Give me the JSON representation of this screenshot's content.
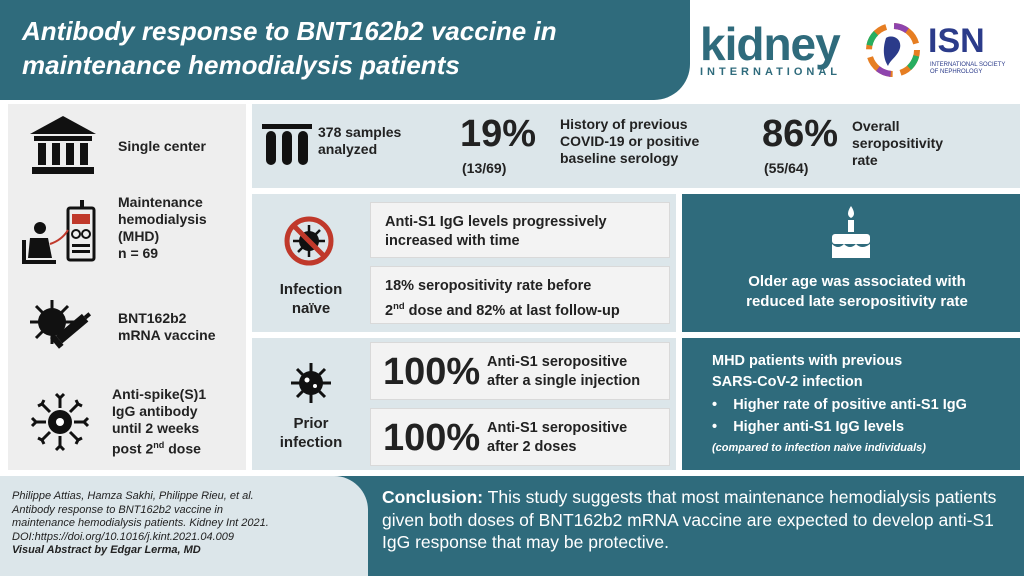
{
  "header": {
    "title_line1": "Antibody response to BNT162b2 vaccine in",
    "title_line2": "maintenance hemodialysis patients",
    "journal_logo_word": "kidney",
    "journal_logo_sub": "INTERNATIONAL",
    "society_logo_word": "ISN",
    "society_logo_sub_line1": "INTERNATIONAL SOCIETY",
    "society_logo_sub_line2": "OF NEPHROLOGY"
  },
  "left_column": {
    "items": [
      {
        "icon": "building-icon",
        "lines": [
          "Single center"
        ]
      },
      {
        "icon": "dialysis-patient-icon",
        "lines": [
          "Maintenance",
          "hemodialysis",
          "(MHD)",
          "n = 69"
        ]
      },
      {
        "icon": "syringe-virus-icon",
        "lines": [
          "BNT162b2",
          "mRNA vaccine"
        ]
      },
      {
        "icon": "antibody-virus-icon",
        "lines": [
          "Anti-spike(S)1",
          "IgG antibody",
          "until 2 weeks",
          "post 2",
          "nd",
          " dose"
        ]
      }
    ]
  },
  "stats": {
    "samples_line1": "378 samples",
    "samples_line2": "analyzed",
    "covid_percent": "19%",
    "covid_fraction": "(13/69)",
    "covid_line1": "History of previous",
    "covid_line2": "COVID-19 or positive",
    "covid_line3": "baseline serology",
    "sero_percent": "86%",
    "sero_fraction": "(55/64)",
    "sero_line1": "Overall",
    "sero_line2": "seropositivity",
    "sero_line3": "rate"
  },
  "naive": {
    "label_line1": "Infection",
    "label_line2": "naïve",
    "box1_line1": "Anti-S1 IgG levels progressively",
    "box1_line2": "increased with time",
    "box2_line1": "18% seropositivity rate before",
    "box2_pre": "2",
    "box2_sup": "nd",
    "box2_post": " dose and 82% at last follow-up",
    "side_line1": "Older age was associated with",
    "side_line2": "reduced late seropositivity rate"
  },
  "prior": {
    "label_line1": "Prior",
    "label_line2": "infection",
    "box1_big": "100%",
    "box1_line1": "Anti-S1 seropositive",
    "box1_line2": "after a single injection",
    "box2_big": "100%",
    "box2_line1": "Anti-S1 seropositive",
    "box2_line2": "after 2 doses",
    "side_line1": "MHD patients with previous",
    "side_line2": "SARS-CoV-2 infection",
    "side_bullet1": "Higher rate of positive anti-S1 IgG",
    "side_bullet2": "Higher anti-S1 IgG levels",
    "side_note": "(compared to infection naïve individuals)"
  },
  "footer": {
    "ref_line1": "Philippe Attias, Hamza Sakhi, Philippe Rieu, et al.",
    "ref_line2": "Antibody response to BNT162b2 vaccine in",
    "ref_line3": "maintenance hemodialysis patients. Kidney Int 2021.",
    "ref_line4": "DOI:https://doi.org/10.1016/j.kint.2021.04.009",
    "ref_line5": "Visual Abstract by Edgar Lerma, MD",
    "conclusion_label": "Conclusion:",
    "conclusion_text": " This study suggests that most maintenance hemodialysis patients given both doses of BNT162b2 mRNA vaccine are expected to develop anti-S1 IgG response that may be protective."
  },
  "colors": {
    "teal": "#2f6b7c",
    "light_blue": "#dce6ea",
    "grey": "#eeeeee",
    "red": "#c0392b"
  }
}
